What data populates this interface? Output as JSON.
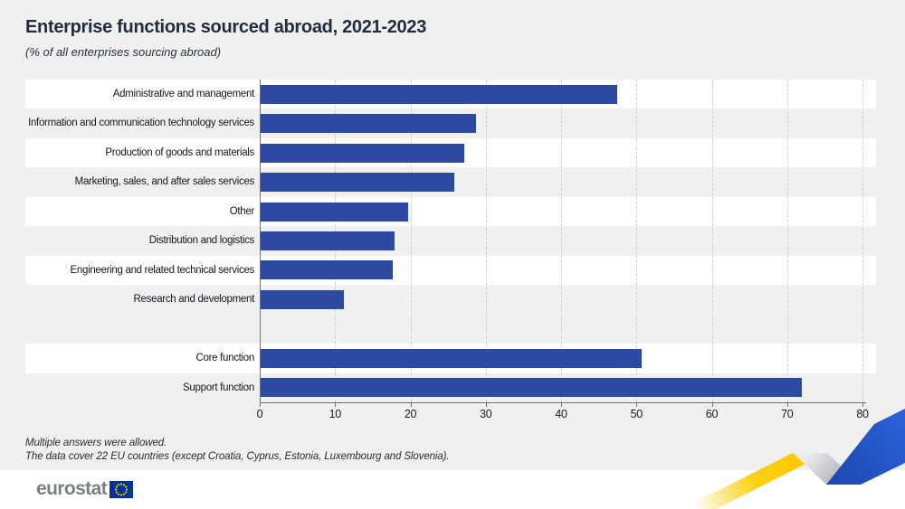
{
  "chart_data": {
    "type": "bar",
    "orientation": "horizontal",
    "title": "Enterprise functions sourced abroad, 2021-2023",
    "subtitle": "(% of all enterprises sourcing abroad)",
    "categories": [
      "Administrative and management",
      "Information and communication technology services",
      "Production of goods and materials",
      "Marketing, sales, and after sales services",
      "Other",
      "Distribution and logistics",
      "Engineering and related technical services",
      "Research and development",
      "Core function",
      "Support function"
    ],
    "values": [
      47.5,
      28.7,
      27.2,
      25.8,
      19.7,
      17.9,
      17.6,
      11.2,
      50.7,
      71.9
    ],
    "group_gap_after_index": 7,
    "xlabel": "",
    "ylabel": "",
    "xlim": [
      0,
      80
    ],
    "x_ticks": [
      0,
      10,
      20,
      30,
      40,
      50,
      60,
      70,
      80
    ],
    "grid": "vertical-dashed",
    "legend": "none",
    "bar_color": "#2c4aa0"
  },
  "notes": {
    "line1": "Multiple answers were allowed.",
    "line2": "The data cover 22 EU countries (except Croatia, Cyprus, Estonia, Luxembourg and Slovenia)."
  },
  "footer": {
    "logo_text": "eurostat",
    "flag_icon": "eu-flag-icon",
    "ribbon_icon": "zigzag-ribbon-icon"
  },
  "colors": {
    "page_bg": "#f0f0f1",
    "stripe": "#ffffff",
    "bar": "#2c4aa0",
    "axis": "#6f6f6f",
    "grid": "#cdcdcd",
    "title_text": "#222c3e",
    "label_text": "#16161e",
    "note_text": "#2b2b2b",
    "logo_text": "#7b7f83",
    "eu_flag_blue": "#003399",
    "star_yellow": "#ffcc00",
    "ribbon_yellow": "#fbc800",
    "ribbon_gray": "#a7abb4",
    "ribbon_blue": "#2353c2"
  }
}
